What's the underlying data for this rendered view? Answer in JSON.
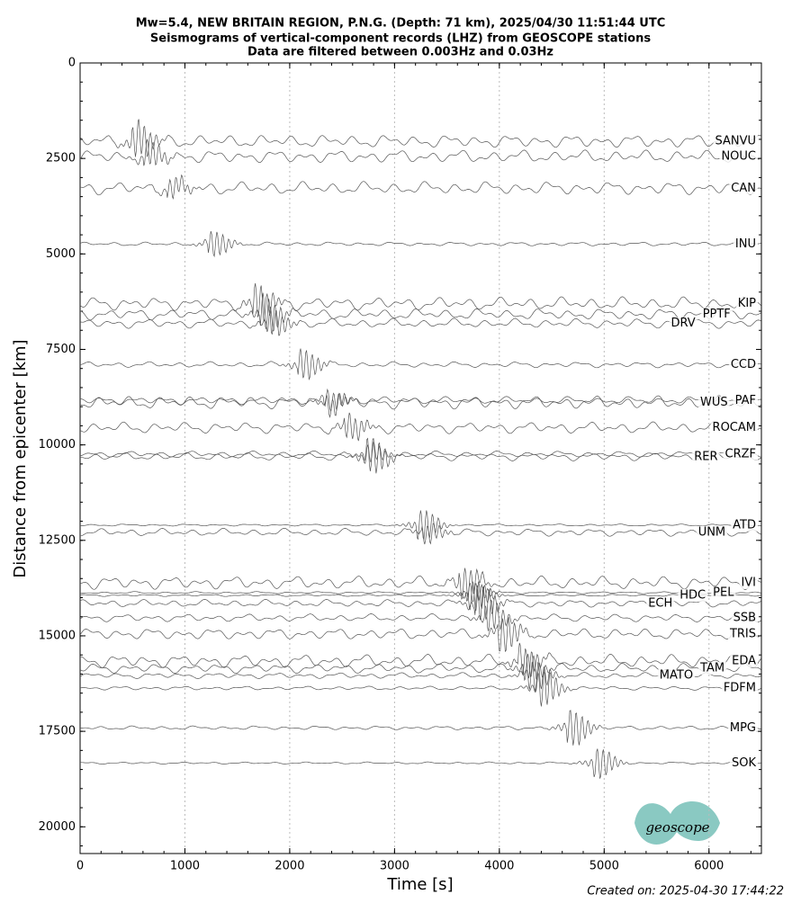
{
  "chart_data": {
    "type": "seismogram",
    "title": "Mw=5.4, NEW BRITAIN REGION, P.N.G. (Depth: 71 km), 2025/04/30 11:51:44 UTC",
    "subtitle": "Seismograms of vertical-component records (LHZ) from GEOSCOPE stations",
    "subtitle2": "Data are filtered between 0.003Hz and 0.03Hz",
    "x_label": "Time [s]",
    "y_label": "Distance from epicenter [km]",
    "xlim": [
      0,
      6500
    ],
    "ylim": [
      20700,
      0
    ],
    "xticks": [
      0,
      1000,
      2000,
      3000,
      4000,
      5000,
      6000
    ],
    "yticks": [
      0,
      2500,
      5000,
      7500,
      10000,
      12500,
      15000,
      17500,
      20000
    ],
    "grid": true,
    "color": "#555555",
    "categories": [
      "SANVU",
      "NOUC",
      "CAN",
      "INU",
      "KIP",
      "PPTF",
      "DRV",
      "CCD",
      "PAF",
      "WUS",
      "ROCAM",
      "CRZF",
      "RER",
      "ATD",
      "UNM",
      "IVI",
      "PEL",
      "HDC",
      "ECH",
      "SSB",
      "TRIS",
      "EDA",
      "TAM",
      "MATO",
      "FDFM",
      "MPG",
      "SOK"
    ],
    "values": [
      2050,
      2450,
      3280,
      4740,
      6300,
      6580,
      6820,
      7900,
      8840,
      8890,
      9550,
      10240,
      10310,
      12100,
      12290,
      13610,
      13870,
      13940,
      14150,
      14530,
      14950,
      15660,
      15850,
      16040,
      16370,
      17410,
      18330
    ],
    "footer": "Created on: 2025-04-30 17:44:22",
    "logo": "geoscope"
  }
}
